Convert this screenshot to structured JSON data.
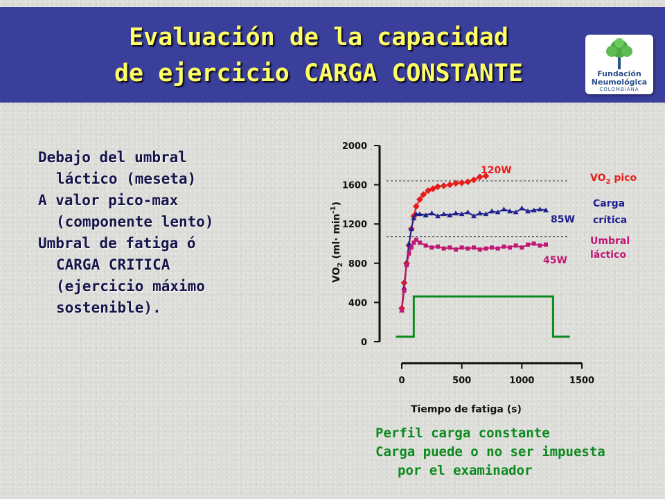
{
  "header": {
    "title_line1": "Evaluación de la capacidad",
    "title_line2": "de ejercicio CARGA CONSTANTE",
    "logo": {
      "line1": "Fundación",
      "line2": "Neumológica",
      "line3": "COLOMBIANA",
      "icon": "tree-icon"
    }
  },
  "bullets": [
    {
      "first": "Debajo del umbral",
      "rest": [
        "láctico (meseta)"
      ]
    },
    {
      "first": "A valor pico-max",
      "rest": [
        "(componente lento)"
      ]
    },
    {
      "first": "Umbral de fatiga ó",
      "rest": [
        "CARGA CRITICA",
        "(ejercicio máximo",
        "sostenible)."
      ]
    }
  ],
  "footer": {
    "line1": "Perfil carga constante",
    "line2": "Carga puede o no ser impuesta",
    "line3": "por el examinador"
  },
  "colors": {
    "header_bg": "#3b3f9c",
    "title": "#ffff66",
    "red": "#e81c1c",
    "navy": "#1f2190",
    "magenta": "#c01873",
    "green": "#0b8a1d"
  },
  "chart_data": {
    "type": "line",
    "xlabel": "Tiempo de fatiga (s)",
    "ylabel": "VO2 (ml·min-1)",
    "ylabel_parts": {
      "a": "VO",
      "sub": "2",
      "b": " (ml",
      "dot": "·",
      "c": " min",
      "sup": "-1",
      "d": ")"
    },
    "xlim": [
      0,
      1500
    ],
    "ylim": [
      0,
      2000
    ],
    "xticks": [
      0,
      500,
      1000,
      1500
    ],
    "yticks": [
      0,
      400,
      800,
      1200,
      1600,
      2000
    ],
    "reference_lines": [
      {
        "name": "VO2 pico",
        "y": 1640
      },
      {
        "name": "Umbral láctico",
        "y": 1070
      }
    ],
    "annotations": {
      "vo2_pico": {
        "a": "VO",
        "sub": "2",
        "b": " pico"
      },
      "carga_critica": [
        "Carga",
        "crítica"
      ],
      "umbral_lactico": [
        "Umbral",
        "láctico"
      ]
    },
    "series": [
      {
        "name": "120W",
        "color": "#e81c1c",
        "points": [
          [
            0,
            340
          ],
          [
            20,
            600
          ],
          [
            40,
            800
          ],
          [
            60,
            980
          ],
          [
            80,
            1150
          ],
          [
            100,
            1280
          ],
          [
            120,
            1380
          ],
          [
            150,
            1450
          ],
          [
            180,
            1500
          ],
          [
            220,
            1540
          ],
          [
            260,
            1560
          ],
          [
            300,
            1580
          ],
          [
            350,
            1590
          ],
          [
            400,
            1600
          ],
          [
            450,
            1615
          ],
          [
            500,
            1620
          ],
          [
            550,
            1630
          ],
          [
            600,
            1650
          ],
          [
            650,
            1680
          ],
          [
            700,
            1690
          ]
        ]
      },
      {
        "name": "85W",
        "color": "#1f2190",
        "points": [
          [
            0,
            320
          ],
          [
            20,
            550
          ],
          [
            40,
            800
          ],
          [
            60,
            1000
          ],
          [
            80,
            1150
          ],
          [
            100,
            1260
          ],
          [
            120,
            1300
          ],
          [
            150,
            1300
          ],
          [
            200,
            1290
          ],
          [
            250,
            1310
          ],
          [
            300,
            1280
          ],
          [
            350,
            1300
          ],
          [
            400,
            1290
          ],
          [
            450,
            1310
          ],
          [
            500,
            1300
          ],
          [
            550,
            1320
          ],
          [
            600,
            1280
          ],
          [
            650,
            1310
          ],
          [
            700,
            1300
          ],
          [
            750,
            1330
          ],
          [
            800,
            1320
          ],
          [
            850,
            1350
          ],
          [
            900,
            1330
          ],
          [
            950,
            1320
          ],
          [
            1000,
            1360
          ],
          [
            1050,
            1330
          ],
          [
            1100,
            1340
          ],
          [
            1150,
            1350
          ],
          [
            1200,
            1340
          ]
        ]
      },
      {
        "name": "45W",
        "color": "#c01873",
        "points": [
          [
            0,
            320
          ],
          [
            20,
            520
          ],
          [
            40,
            780
          ],
          [
            60,
            900
          ],
          [
            80,
            960
          ],
          [
            100,
            1010
          ],
          [
            120,
            1040
          ],
          [
            150,
            1010
          ],
          [
            200,
            980
          ],
          [
            250,
            960
          ],
          [
            300,
            970
          ],
          [
            350,
            950
          ],
          [
            400,
            960
          ],
          [
            450,
            940
          ],
          [
            500,
            960
          ],
          [
            550,
            950
          ],
          [
            600,
            960
          ],
          [
            650,
            940
          ],
          [
            700,
            950
          ],
          [
            750,
            960
          ],
          [
            800,
            950
          ],
          [
            850,
            970
          ],
          [
            900,
            960
          ],
          [
            950,
            980
          ],
          [
            1000,
            960
          ],
          [
            1050,
            990
          ],
          [
            1100,
            1000
          ],
          [
            1150,
            980
          ],
          [
            1200,
            990
          ]
        ]
      }
    ],
    "load_profile": {
      "name": "Perfil carga constante",
      "color": "#0b8a1d",
      "points": [
        [
          -50,
          50
        ],
        [
          100,
          50
        ],
        [
          100,
          460
        ],
        [
          1260,
          460
        ],
        [
          1260,
          50
        ],
        [
          1400,
          50
        ]
      ]
    }
  }
}
